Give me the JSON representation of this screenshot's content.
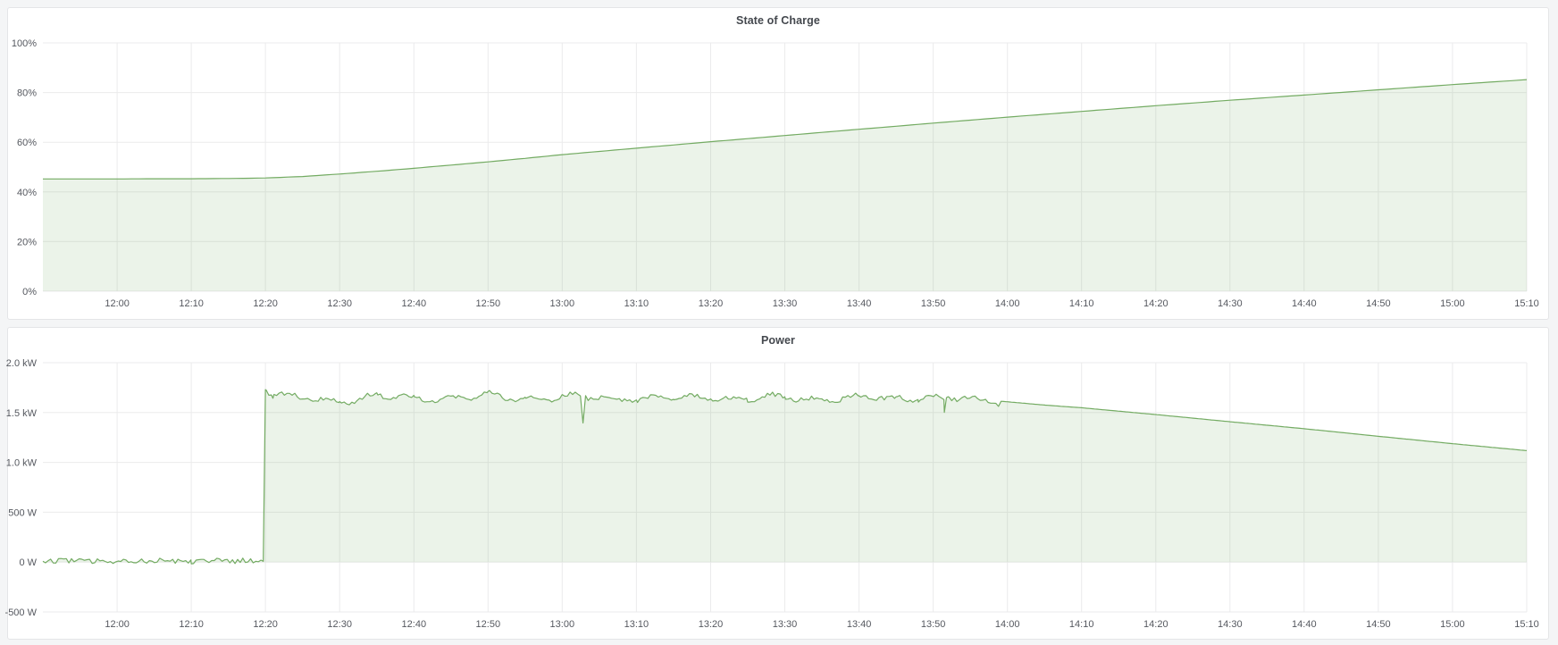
{
  "page": {
    "background": "#f4f5f6",
    "panel_background": "#ffffff",
    "panel_border": "#e4e5e7",
    "accent_green": "#73ab62"
  },
  "chart_data": [
    {
      "type": "area",
      "title": "State of Charge",
      "ylabel": "",
      "xlabel": "",
      "legend": "none",
      "grid": true,
      "line_color": "#73ab62",
      "fill_color": "rgba(115,171,98,0.14)",
      "grid_color": "#ebebec",
      "x_range": [
        -10,
        190
      ],
      "y_range": [
        0,
        100
      ],
      "fill_to": 0,
      "sample_step": 1,
      "seed": 3,
      "x_ticks": [
        {
          "t": 0,
          "label": "12:00"
        },
        {
          "t": 10,
          "label": "12:10"
        },
        {
          "t": 20,
          "label": "12:20"
        },
        {
          "t": 30,
          "label": "12:30"
        },
        {
          "t": 40,
          "label": "12:40"
        },
        {
          "t": 50,
          "label": "12:50"
        },
        {
          "t": 60,
          "label": "13:00"
        },
        {
          "t": 70,
          "label": "13:10"
        },
        {
          "t": 80,
          "label": "13:20"
        },
        {
          "t": 90,
          "label": "13:30"
        },
        {
          "t": 100,
          "label": "13:40"
        },
        {
          "t": 110,
          "label": "13:50"
        },
        {
          "t": 120,
          "label": "14:00"
        },
        {
          "t": 130,
          "label": "14:10"
        },
        {
          "t": 140,
          "label": "14:20"
        },
        {
          "t": 150,
          "label": "14:30"
        },
        {
          "t": 160,
          "label": "14:40"
        },
        {
          "t": 170,
          "label": "14:50"
        },
        {
          "t": 180,
          "label": "15:00"
        },
        {
          "t": 190,
          "label": "15:10"
        }
      ],
      "y_ticks": [
        {
          "v": 0,
          "label": "0%"
        },
        {
          "v": 20,
          "label": "20%"
        },
        {
          "v": 40,
          "label": "40%"
        },
        {
          "v": 60,
          "label": "60%"
        },
        {
          "v": 80,
          "label": "80%"
        },
        {
          "v": 100,
          "label": "100%"
        }
      ],
      "points": [
        [
          -10,
          45.2
        ],
        [
          0,
          45.2
        ],
        [
          5,
          45.3
        ],
        [
          10,
          45.3
        ],
        [
          15,
          45.4
        ],
        [
          20,
          45.6
        ],
        [
          25,
          46.2
        ],
        [
          30,
          47.2
        ],
        [
          35,
          48.3
        ],
        [
          40,
          49.5
        ],
        [
          45,
          50.8
        ],
        [
          50,
          52.1
        ],
        [
          55,
          53.5
        ],
        [
          60,
          55.0
        ],
        [
          70,
          57.6
        ],
        [
          80,
          60.2
        ],
        [
          90,
          62.7
        ],
        [
          100,
          65.2
        ],
        [
          110,
          67.7
        ],
        [
          120,
          70.1
        ],
        [
          130,
          72.4
        ],
        [
          140,
          74.7
        ],
        [
          150,
          76.9
        ],
        [
          160,
          79.0
        ],
        [
          170,
          81.1
        ],
        [
          180,
          83.2
        ],
        [
          190,
          85.2
        ]
      ]
    },
    {
      "type": "area",
      "title": "Power",
      "ylabel": "",
      "xlabel": "",
      "legend": "none",
      "grid": true,
      "line_color": "#73ab62",
      "fill_color": "rgba(115,171,98,0.14)",
      "grid_color": "#ebebec",
      "x_range": [
        -10,
        190
      ],
      "y_range": [
        -500,
        2000
      ],
      "fill_to": 0,
      "sample_step": 0.35,
      "seed": 12,
      "x_ticks": [
        {
          "t": 0,
          "label": "12:00"
        },
        {
          "t": 10,
          "label": "12:10"
        },
        {
          "t": 20,
          "label": "12:20"
        },
        {
          "t": 30,
          "label": "12:30"
        },
        {
          "t": 40,
          "label": "12:40"
        },
        {
          "t": 50,
          "label": "12:50"
        },
        {
          "t": 60,
          "label": "13:00"
        },
        {
          "t": 70,
          "label": "13:10"
        },
        {
          "t": 80,
          "label": "13:20"
        },
        {
          "t": 90,
          "label": "13:30"
        },
        {
          "t": 100,
          "label": "13:40"
        },
        {
          "t": 110,
          "label": "13:50"
        },
        {
          "t": 120,
          "label": "14:00"
        },
        {
          "t": 130,
          "label": "14:10"
        },
        {
          "t": 140,
          "label": "14:20"
        },
        {
          "t": 150,
          "label": "14:30"
        },
        {
          "t": 160,
          "label": "14:40"
        },
        {
          "t": 170,
          "label": "14:50"
        },
        {
          "t": 180,
          "label": "15:00"
        },
        {
          "t": 190,
          "label": "15:10"
        }
      ],
      "y_ticks": [
        {
          "v": -500,
          "label": "-500 W"
        },
        {
          "v": 0,
          "label": "0 W"
        },
        {
          "v": 500,
          "label": "500 W"
        },
        {
          "v": 1000,
          "label": "1.0 kW"
        },
        {
          "v": 1500,
          "label": "1.5 kW"
        },
        {
          "v": 2000,
          "label": "2.0 kW"
        }
      ],
      "points": [
        [
          -10,
          18
        ],
        [
          0,
          12
        ],
        [
          10,
          20
        ],
        [
          19.7,
          8
        ],
        [
          20,
          1730
        ],
        [
          21,
          1680
        ],
        [
          25,
          1640
        ],
        [
          30,
          1620
        ],
        [
          35,
          1665
        ],
        [
          40,
          1645
        ],
        [
          45,
          1650
        ],
        [
          50,
          1665
        ],
        [
          55,
          1640
        ],
        [
          60,
          1655
        ],
        [
          65,
          1645
        ],
        [
          70,
          1650
        ],
        [
          75,
          1638
        ],
        [
          80,
          1648
        ],
        [
          85,
          1640
        ],
        [
          90,
          1650
        ],
        [
          95,
          1638
        ],
        [
          100,
          1642
        ],
        [
          105,
          1645
        ],
        [
          108,
          1655
        ],
        [
          112,
          1640
        ],
        [
          116,
          1630
        ],
        [
          120,
          1608
        ],
        [
          125,
          1575
        ],
        [
          130,
          1548
        ],
        [
          140,
          1480
        ],
        [
          150,
          1408
        ],
        [
          160,
          1338
        ],
        [
          170,
          1262
        ],
        [
          180,
          1188
        ],
        [
          190,
          1118
        ]
      ],
      "noise_segments": [
        {
          "from": -10,
          "to": 19.6,
          "amp": 26,
          "wave_amp": 14,
          "wave_freq": 1.1
        },
        {
          "from": 20.3,
          "to": 119,
          "amp": 22,
          "wave_amp": 38,
          "wave_freq": 0.55
        }
      ],
      "spikes": [
        [
          62.8,
          1395
        ],
        [
          111.5,
          1502
        ]
      ]
    }
  ]
}
